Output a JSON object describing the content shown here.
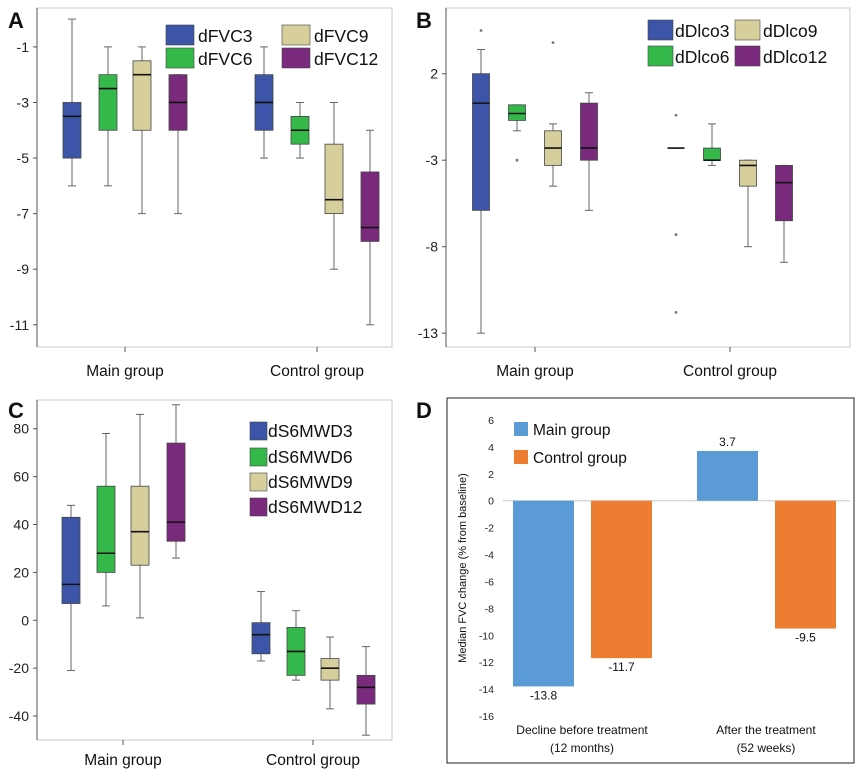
{
  "colors": {
    "blue": "#3d55a8",
    "green": "#35b84a",
    "tan": "#d6cf9b",
    "purple": "#7a2a7d",
    "light_blue": "#5b9bd5",
    "orange": "#ed7d31"
  },
  "chart_data": [
    {
      "panel": "A",
      "type": "box",
      "categories": [
        "Main group",
        "Control group"
      ],
      "ylim": [
        -11.8,
        0.4
      ],
      "yticks": [
        -1,
        -3,
        -5,
        -7,
        -9,
        -11
      ],
      "legend": [
        "dFVC3",
        "dFVC6",
        "dFVC9",
        "dFVC12"
      ],
      "groups": [
        [
          {
            "min": -6,
            "q1": -5,
            "median": -3.5,
            "q3": -3,
            "max": 0
          },
          {
            "min": -6,
            "q1": -4,
            "median": -2.5,
            "q3": -2,
            "max": -1
          },
          {
            "min": -7,
            "q1": -4,
            "median": -2,
            "q3": -1.5,
            "max": -1
          },
          {
            "min": -7,
            "q1": -4,
            "median": -3,
            "q3": -2,
            "max": -2
          }
        ],
        [
          {
            "min": -5,
            "q1": -4,
            "median": -3,
            "q3": -2,
            "max": -1
          },
          {
            "min": -5,
            "q1": -4.5,
            "median": -4,
            "q3": -3.5,
            "max": -3
          },
          {
            "min": -9,
            "q1": -7,
            "median": -6.5,
            "q3": -4.5,
            "max": -3
          },
          {
            "min": -11,
            "q1": -8,
            "median": -7.5,
            "q3": -5.5,
            "max": -4
          }
        ]
      ],
      "outliers": []
    },
    {
      "panel": "B",
      "type": "box",
      "categories": [
        "Main group",
        "Control group"
      ],
      "ylim": [
        -13.8,
        5.8
      ],
      "yticks": [
        2,
        -3,
        -8,
        -13
      ],
      "legend": [
        "dDlco3",
        "dDlco6",
        "dDlco9",
        "dDlco12"
      ],
      "groups": [
        [
          {
            "min": -13,
            "q1": -5.9,
            "median": 0.3,
            "q3": 2,
            "max": 3.4
          },
          {
            "min": -1.3,
            "q1": -0.7,
            "median": -0.3,
            "q3": 0.2,
            "max": 0.2
          },
          {
            "min": -4.5,
            "q1": -3.3,
            "median": -2.3,
            "q3": -1.3,
            "max": -0.9
          },
          {
            "min": -5.9,
            "q1": -3,
            "median": -2.3,
            "q3": 0.3,
            "max": 0.9
          }
        ],
        [
          {
            "min": -2.3,
            "q1": -2.3,
            "median": -2.3,
            "q3": -2.3,
            "max": -2.3
          },
          {
            "min": -3.3,
            "q1": -3,
            "median": -3,
            "q3": -2.3,
            "max": -0.9
          },
          {
            "min": -8,
            "q1": -4.5,
            "median": -3.3,
            "q3": -3,
            "max": -3
          },
          {
            "min": -8.9,
            "q1": -6.5,
            "median": -4.3,
            "q3": -3.3,
            "max": -3.3
          }
        ]
      ],
      "outliers": [
        {
          "group": 0,
          "series": 0,
          "value": 4.5
        },
        {
          "group": 0,
          "series": 1,
          "value": -3
        },
        {
          "group": 0,
          "series": 2,
          "value": 3.8
        },
        {
          "group": 1,
          "series": 0,
          "value": -0.4
        },
        {
          "group": 1,
          "series": 0,
          "value": -7.3
        },
        {
          "group": 1,
          "series": 0,
          "value": -11.8
        }
      ]
    },
    {
      "panel": "C",
      "type": "box",
      "categories": [
        "Main group",
        "Control group"
      ],
      "ylim": [
        -50,
        92
      ],
      "yticks": [
        80,
        60,
        40,
        20,
        0,
        -20,
        -40
      ],
      "legend": [
        "dS6MWD3",
        "dS6MWD6",
        "dS6MWD9",
        "dS6MWD12"
      ],
      "groups": [
        [
          {
            "min": -21,
            "q1": 7,
            "median": 15,
            "q3": 43,
            "max": 48
          },
          {
            "min": 6,
            "q1": 20,
            "median": 28,
            "q3": 56,
            "max": 78
          },
          {
            "min": 1,
            "q1": 23,
            "median": 37,
            "q3": 56,
            "max": 86
          },
          {
            "min": 26,
            "q1": 33,
            "median": 41,
            "q3": 74,
            "max": 90
          }
        ],
        [
          {
            "min": -17,
            "q1": -14,
            "median": -6,
            "q3": -1,
            "max": 12
          },
          {
            "min": -25,
            "q1": -23,
            "median": -13,
            "q3": -3,
            "max": 4
          },
          {
            "min": -37,
            "q1": -25,
            "median": -20,
            "q3": -16,
            "max": -7
          },
          {
            "min": -48,
            "q1": -35,
            "median": -28,
            "q3": -23,
            "max": -11
          }
        ]
      ],
      "outliers": []
    },
    {
      "panel": "D",
      "type": "bar",
      "categories": [
        "Decline before treatment\n(12 months)",
        "After the treatment\n(52 weeks)"
      ],
      "category_line1": [
        "Decline before treatment",
        "After the treatment"
      ],
      "category_line2": [
        "(12 months)",
        "(52 weeks)"
      ],
      "series": [
        {
          "name": "Main group",
          "values": [
            -13.8,
            3.7
          ]
        },
        {
          "name": "Control group",
          "values": [
            -11.7,
            -9.5
          ]
        }
      ],
      "value_labels": [
        [
          "-13.8",
          "3.7"
        ],
        [
          "-11.7",
          "-9.5"
        ]
      ],
      "ylabel": "Median FVC change  (% from baseline)",
      "ylim": [
        -16,
        6
      ],
      "yticks": [
        6,
        4,
        2,
        0,
        -2,
        -4,
        -6,
        -8,
        -10,
        -12,
        -14,
        -16
      ]
    }
  ],
  "panel_labels": [
    "A",
    "B",
    "C",
    "D"
  ]
}
